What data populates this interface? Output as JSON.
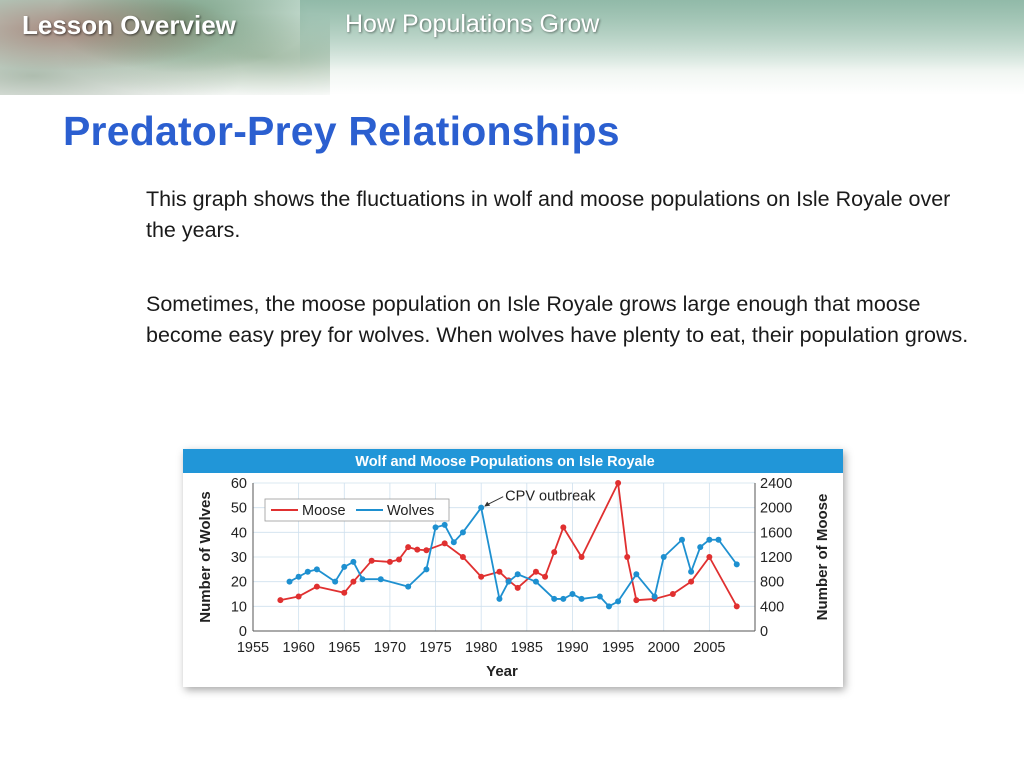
{
  "header": {
    "section_label": "Lesson Overview",
    "topic": "How Populations Grow"
  },
  "slide": {
    "title": "Predator-Prey Relationships",
    "paragraphs": [
      "This graph shows the fluctuations in wolf and moose populations on Isle Royale over the years.",
      "Sometimes, the moose population on Isle Royale grows large enough that moose become easy prey for wolves. When wolves have plenty to eat, their population grows."
    ]
  },
  "colors": {
    "title": "#2b5fd0",
    "chart_banner": "#2196d8",
    "moose": "#e03030",
    "wolves": "#1e90d0"
  },
  "chart_data": {
    "type": "line",
    "title": "Wolf and  Moose Populations on Isle Royale",
    "xlabel": "Year",
    "ylabel_left": "Number of Wolves",
    "ylabel_right": "Number of Moose",
    "x_ticks": [
      "1955",
      "1960",
      "1965",
      "1970",
      "1975",
      "1980",
      "1985",
      "1990",
      "1995",
      "2000",
      "2005"
    ],
    "y_left_ticks": [
      "0",
      "10",
      "20",
      "30",
      "40",
      "50",
      "60"
    ],
    "y_right_ticks": [
      "0",
      "400",
      "800",
      "1200",
      "1600",
      "2000",
      "2400"
    ],
    "xlim": [
      1955,
      2010
    ],
    "ylim_left": [
      0,
      60
    ],
    "ylim_right": [
      0,
      2400
    ],
    "grid": true,
    "legend": "top-left",
    "annotation": {
      "text": "CPV outbreak",
      "x": 1980,
      "y": 50
    },
    "series": [
      {
        "name": "Moose",
        "axis": "right",
        "color": "#e03030",
        "x": [
          1958,
          1960,
          1962,
          1965,
          1966,
          1968,
          1970,
          1971,
          1972,
          1973,
          1974,
          1976,
          1978,
          1980,
          1982,
          1983,
          1984,
          1986,
          1987,
          1988,
          1989,
          1991,
          1995,
          1996,
          1997,
          1999,
          2001,
          2003,
          2005,
          2008
        ],
        "y": [
          500,
          560,
          720,
          620,
          800,
          1140,
          1120,
          1160,
          1360,
          1320,
          1310,
          1420,
          1200,
          880,
          960,
          820,
          700,
          960,
          880,
          1280,
          1680,
          1200,
          2400,
          1200,
          500,
          520,
          600,
          800,
          1200,
          400
        ]
      },
      {
        "name": "Wolves",
        "axis": "left",
        "color": "#1e90d0",
        "x": [
          1959,
          1960,
          1961,
          1962,
          1964,
          1965,
          1966,
          1967,
          1969,
          1972,
          1974,
          1975,
          1976,
          1977,
          1978,
          1980,
          1982,
          1983,
          1984,
          1986,
          1988,
          1989,
          1990,
          1991,
          1993,
          1994,
          1995,
          1997,
          1999,
          2000,
          2002,
          2003,
          2004,
          2005,
          2006,
          2008
        ],
        "y": [
          20,
          22,
          24,
          25,
          20,
          26,
          28,
          21,
          21,
          18,
          25,
          42,
          43,
          36,
          40,
          50,
          13,
          20,
          23,
          20,
          13,
          13,
          15,
          13,
          14,
          10,
          12,
          23,
          14,
          30,
          37,
          24,
          34,
          37,
          37,
          27
        ]
      }
    ]
  }
}
